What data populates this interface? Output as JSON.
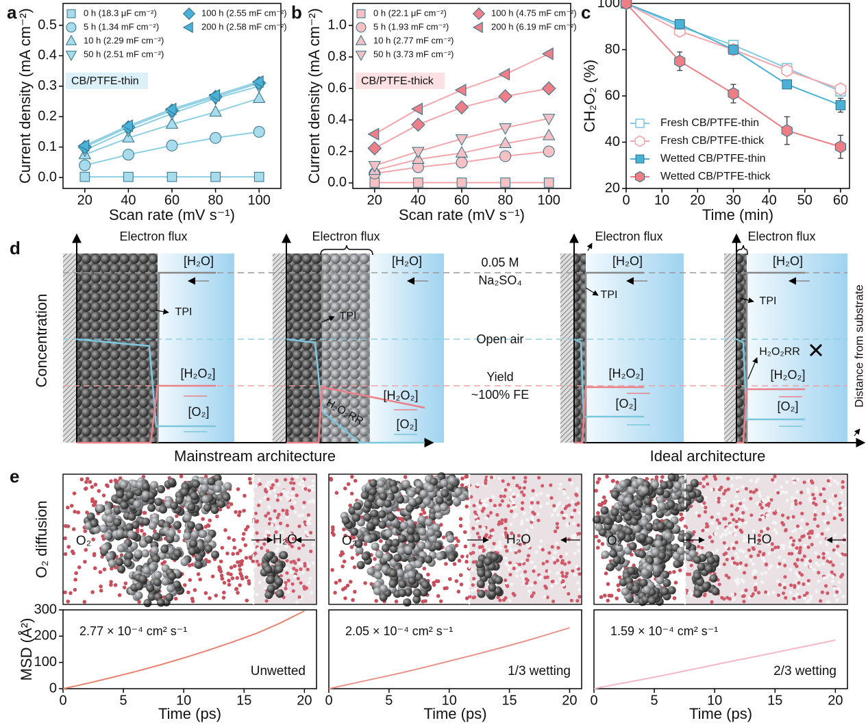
{
  "chart_data": [
    {
      "type": "line",
      "panel": "a",
      "x_label": "Scan rate (mV s⁻¹)",
      "y_label": "Current density (mA cm⁻²)",
      "annotations": [
        "CB/PTFE-thin"
      ],
      "x": [
        20,
        40,
        60,
        80,
        100
      ],
      "xlim": [
        10,
        110
      ],
      "xticks": [
        20,
        40,
        60,
        80,
        100
      ],
      "ylim": [
        -0.036,
        0.572
      ],
      "yticks": [
        {
          "value": 0,
          "label": "0.0"
        },
        0.1,
        0.2,
        0.3,
        0.4,
        0.5
      ],
      "fit_color": "#8ccfe3",
      "series": [
        {
          "name": "0 h (18.3 μF cm⁻²)",
          "marker": "square",
          "color": "#a8dcec",
          "values": [
            0.002,
            0.002,
            0.002,
            0.002,
            0.002
          ]
        },
        {
          "name": "5 h (1.34 mF cm⁻²)",
          "marker": "circle",
          "color": "#a8dcec",
          "values": [
            0.04,
            0.075,
            0.105,
            0.13,
            0.15
          ]
        },
        {
          "name": "10 h (2.29 mF cm⁻²)",
          "marker": "triangle-up",
          "color": "#a8dcec",
          "values": [
            0.075,
            0.13,
            0.175,
            0.215,
            0.26
          ]
        },
        {
          "name": "50 h (2.51 mF cm⁻²)",
          "marker": "triangle-down",
          "color": "#a8dcec",
          "values": [
            0.09,
            0.155,
            0.21,
            0.26,
            0.3
          ]
        },
        {
          "name": "100 h (2.55 mF cm⁻²)",
          "marker": "diamond",
          "color": "#4ab0d6",
          "values": [
            0.1,
            0.165,
            0.22,
            0.265,
            0.31
          ]
        },
        {
          "name": "200 h (2.58 mF cm⁻²)",
          "marker": "triangle-left",
          "color": "#4ab0d6",
          "values": [
            0.105,
            0.17,
            0.225,
            0.27,
            0.315
          ]
        }
      ]
    },
    {
      "type": "line",
      "panel": "b",
      "x_label": "Scan rate (mV s⁻¹)",
      "y_label": "Current density (mA cm⁻²)",
      "annotations": [
        "CB/PTFE-thick"
      ],
      "x": [
        20,
        40,
        60,
        80,
        100
      ],
      "xlim": [
        10,
        110
      ],
      "xticks": [
        20,
        40,
        60,
        80,
        100
      ],
      "ylim": [
        -0.035,
        1.14
      ],
      "yticks": [
        {
          "value": 0,
          "label": "0.0"
        },
        0.2,
        0.4,
        0.6,
        0.8,
        {
          "value": 1,
          "label": "1.0"
        }
      ],
      "fit_color": "#f2a6ab",
      "series": [
        {
          "name": "0 h (22.1 μF cm⁻²)",
          "marker": "square",
          "color": "#f7c1c4",
          "values": [
            0.002,
            0.002,
            0.002,
            0.002,
            0.002
          ]
        },
        {
          "name": "5 h (1.93 mF cm⁻²)",
          "marker": "circle",
          "color": "#f7c1c4",
          "values": [
            0.06,
            0.1,
            0.13,
            0.17,
            0.2
          ]
        },
        {
          "name": "10 h (2.77 mF cm⁻²)",
          "marker": "triangle-up",
          "color": "#f7c1c4",
          "values": [
            0.08,
            0.15,
            0.19,
            0.25,
            0.3
          ]
        },
        {
          "name": "50 h (3.73 mF cm⁻²)",
          "marker": "triangle-down",
          "color": "#f7c1c4",
          "values": [
            0.11,
            0.2,
            0.28,
            0.35,
            0.41
          ]
        },
        {
          "name": "100 h (4.75 mF cm⁻²)",
          "marker": "diamond",
          "color": "#ee7f88",
          "values": [
            0.22,
            0.37,
            0.48,
            0.55,
            0.6
          ]
        },
        {
          "name": "200 h (6.19 mF cm⁻²)",
          "marker": "triangle-left",
          "color": "#ee7f88",
          "values": [
            0.31,
            0.47,
            0.59,
            0.69,
            0.82
          ]
        }
      ]
    },
    {
      "type": "line",
      "panel": "c",
      "x_label": "Time (min)",
      "y_label": "CH₂O₂ (%)",
      "x": [
        0,
        15,
        30,
        45,
        60
      ],
      "xlim": [
        0,
        62.5
      ],
      "xticks": [
        0,
        10,
        20,
        30,
        40,
        50,
        60
      ],
      "ylim": [
        20,
        100
      ],
      "yticks": [
        20,
        40,
        60,
        80,
        100
      ],
      "series": [
        {
          "name": "Fresh CB/PTFE-thin",
          "marker": "square",
          "open": true,
          "color": "#7fcbe2",
          "values": [
            100,
            90,
            82,
            72,
            62
          ]
        },
        {
          "name": "Fresh CB/PTFE-thick",
          "marker": "hexagon",
          "open": true,
          "color": "#f2a6ab",
          "values": [
            100,
            88,
            80,
            71,
            63
          ]
        },
        {
          "name": "Wetted CB/PTFE-thin",
          "marker": "square",
          "color": "#4ab0d6",
          "values": [
            100,
            91,
            80,
            65,
            56
          ],
          "errors": [
            0,
            2,
            1,
            1,
            3
          ]
        },
        {
          "name": "Wetted CB/PTFE-thick",
          "marker": "hexagon",
          "color": "#ec7f86",
          "values": [
            100,
            75,
            61,
            45,
            38
          ],
          "errors": [
            0,
            4,
            4,
            6,
            5
          ]
        }
      ]
    },
    {
      "type": "line",
      "x_label": "Time (ps)",
      "y_label": "MSD (Å²)",
      "annotations": [
        "2.77 × 10⁻⁴ cm² s⁻¹",
        "Unwetted"
      ],
      "x": [
        0,
        2,
        4,
        6,
        8,
        10,
        12,
        14,
        16,
        18,
        20
      ],
      "xlim": [
        0,
        21
      ],
      "xticks": [
        0,
        5,
        10,
        15,
        20
      ],
      "ylim": [
        0,
        300
      ],
      "yticks": [
        0,
        100,
        200,
        300
      ],
      "series": [
        {
          "color": "#e8816e",
          "values": [
            0,
            20,
            42,
            65,
            90,
            117,
            146,
            177,
            210,
            250,
            296
          ]
        }
      ]
    },
    {
      "type": "line",
      "x_label": "Time (ps)",
      "annotations": [
        "2.05 × 10⁻⁴ cm² s⁻¹",
        "1/3 wetting"
      ],
      "x": [
        0,
        2,
        4,
        6,
        8,
        10,
        12,
        14,
        16,
        18,
        20
      ],
      "xlim": [
        0,
        21
      ],
      "xticks": [
        0,
        5,
        10,
        15,
        20
      ],
      "ylim": [
        0,
        300
      ],
      "series": [
        {
          "color": "#e8938a",
          "values": [
            0,
            20,
            40,
            60,
            82,
            105,
            128,
            152,
            177,
            204,
            232
          ]
        }
      ]
    },
    {
      "type": "line",
      "x_label": "Time (ps)",
      "annotations": [
        "1.59 × 10⁻⁴ cm² s⁻¹",
        "2/3 wetting"
      ],
      "x": [
        0,
        2,
        4,
        6,
        8,
        10,
        12,
        14,
        16,
        18,
        20
      ],
      "xlim": [
        0,
        21
      ],
      "xticks": [
        0,
        5,
        10,
        15,
        20
      ],
      "ylim": [
        0,
        300
      ],
      "series": [
        {
          "color": "#f4b8c4",
          "values": [
            0,
            18,
            35,
            53,
            72,
            91,
            110,
            128,
            147,
            166,
            185
          ]
        }
      ]
    }
  ],
  "panel_d": {
    "label": "d",
    "electron_flux": [
      "Electron flux",
      "Electron flux",
      "Electron flux",
      "Electron flux"
    ],
    "h2o": [
      "[H₂O]",
      "[H₂O]",
      "[H₂O]",
      "[H₂O]"
    ],
    "electrolyte": [
      "0.05 M",
      "Na₂SO₄"
    ],
    "tpi": [
      "TPI",
      "TPI",
      "TPI",
      "TPI"
    ],
    "concentration": "Concentration",
    "open_air": "Open air",
    "h2o2": [
      "[H₂O₂]",
      "[H₂O₂]",
      "[H₂O₂]",
      "[H₂O₂]"
    ],
    "yield": [
      "Yield",
      "~100% FE"
    ],
    "o2": [
      "[O₂]",
      "[O₂]",
      "[O₂]",
      "[O₂]"
    ],
    "h2o2rr": [
      "H₂O₂RR",
      "H₂O₂RR"
    ],
    "architectures": [
      "Mainstream architecture",
      "Ideal architecture"
    ],
    "distance": "Distance from substrate"
  },
  "panel_e": {
    "label": "e",
    "y_label": "O₂ diffusion",
    "o2": [
      "O₂",
      "O₂",
      "O₂"
    ],
    "h2o": [
      "H₂O",
      "H₂O",
      "H₂O"
    ]
  }
}
